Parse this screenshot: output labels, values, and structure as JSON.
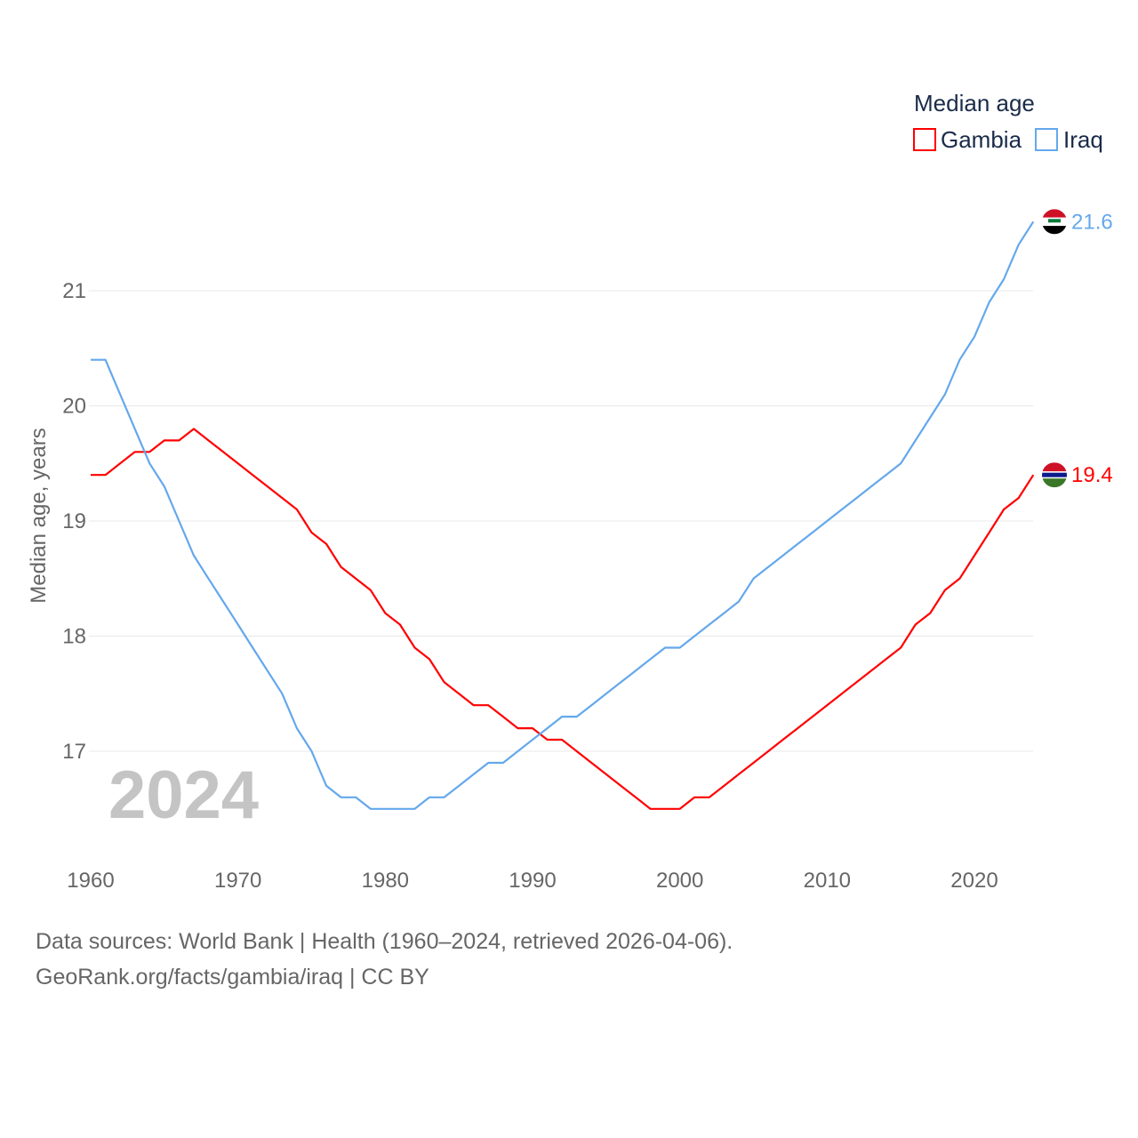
{
  "chart_data": {
    "type": "line",
    "title": "Median age",
    "xlabel": "",
    "ylabel": "Median age, years",
    "xlim": [
      1960,
      2024
    ],
    "ylim": [
      16.1,
      22.2
    ],
    "x_ticks": [
      "1960",
      "1970",
      "1980",
      "1990",
      "2000",
      "2010",
      "2020"
    ],
    "y_ticks": [
      "17",
      "18",
      "19",
      "20",
      "21"
    ],
    "grid": true,
    "legend_position": "top-right",
    "year_watermark": "2024",
    "x": [
      1960,
      1961,
      1962,
      1963,
      1964,
      1965,
      1966,
      1967,
      1968,
      1969,
      1970,
      1971,
      1972,
      1973,
      1974,
      1975,
      1976,
      1977,
      1978,
      1979,
      1980,
      1981,
      1982,
      1983,
      1984,
      1985,
      1986,
      1987,
      1988,
      1989,
      1990,
      1991,
      1992,
      1993,
      1994,
      1995,
      1996,
      1997,
      1998,
      1999,
      2000,
      2001,
      2002,
      2003,
      2004,
      2005,
      2006,
      2007,
      2008,
      2009,
      2010,
      2011,
      2012,
      2013,
      2014,
      2015,
      2016,
      2017,
      2018,
      2019,
      2020,
      2021,
      2022,
      2023,
      2024
    ],
    "series": [
      {
        "name": "Gambia",
        "color": "#ff0000",
        "end_label": "19.4",
        "values": [
          19.4,
          19.4,
          19.5,
          19.6,
          19.6,
          19.7,
          19.7,
          19.8,
          19.7,
          19.6,
          19.5,
          19.4,
          19.3,
          19.2,
          19.1,
          18.9,
          18.8,
          18.6,
          18.5,
          18.4,
          18.2,
          18.1,
          17.9,
          17.8,
          17.6,
          17.5,
          17.4,
          17.4,
          17.3,
          17.2,
          17.2,
          17.1,
          17.1,
          17.0,
          16.9,
          16.8,
          16.7,
          16.6,
          16.5,
          16.5,
          16.5,
          16.6,
          16.6,
          16.7,
          16.8,
          16.9,
          17.0,
          17.1,
          17.2,
          17.3,
          17.4,
          17.5,
          17.6,
          17.7,
          17.8,
          17.9,
          18.1,
          18.2,
          18.4,
          18.5,
          18.7,
          18.9,
          19.1,
          19.2,
          19.4
        ]
      },
      {
        "name": "Iraq",
        "color": "#64a8ec",
        "end_label": "21.6",
        "values": [
          20.4,
          20.4,
          20.1,
          19.8,
          19.5,
          19.3,
          19.0,
          18.7,
          18.5,
          18.3,
          18.1,
          17.9,
          17.7,
          17.5,
          17.2,
          17.0,
          16.7,
          16.6,
          16.6,
          16.5,
          16.5,
          16.5,
          16.5,
          16.6,
          16.6,
          16.7,
          16.8,
          16.9,
          16.9,
          17.0,
          17.1,
          17.2,
          17.3,
          17.3,
          17.4,
          17.5,
          17.6,
          17.7,
          17.8,
          17.9,
          17.9,
          18.0,
          18.1,
          18.2,
          18.3,
          18.5,
          18.6,
          18.7,
          18.8,
          18.9,
          19.0,
          19.1,
          19.2,
          19.3,
          19.4,
          19.5,
          19.7,
          19.9,
          20.1,
          20.4,
          20.6,
          20.9,
          21.1,
          21.4,
          21.6
        ]
      }
    ]
  },
  "footer": {
    "source": "Data sources: World Bank | Health (1960–2024, retrieved 2026-04-06).",
    "credit": "GeoRank.org/facts/gambia/iraq | CC BY"
  }
}
